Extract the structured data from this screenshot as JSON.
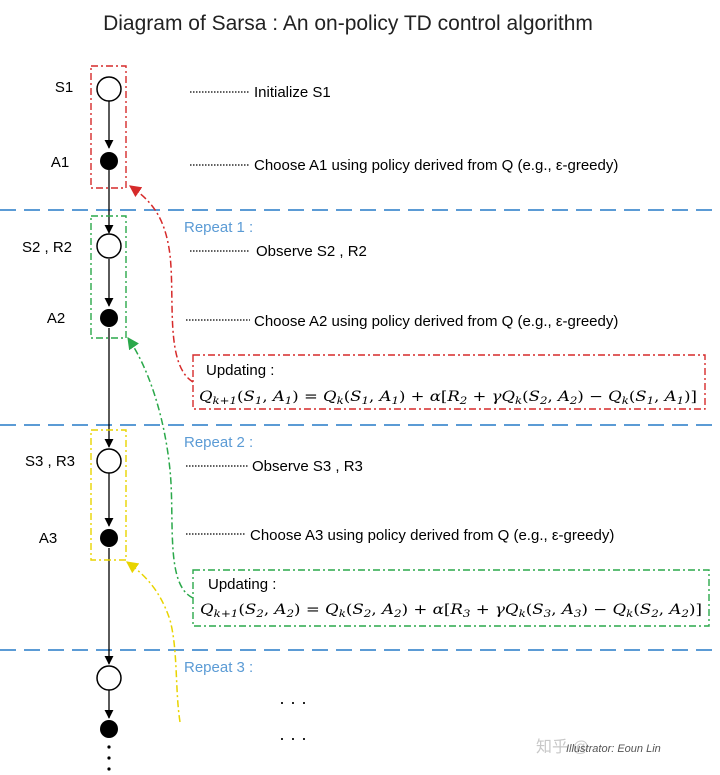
{
  "title": "Diagram of Sarsa : An on-policy TD control algorithm",
  "nodes": {
    "s1": "S1",
    "a1": "A1",
    "s2r2": "S2 , R2",
    "a2": "A2",
    "s3r3": "S3 , R3",
    "a3": "A3"
  },
  "steps": {
    "init_s1": "Initialize S1",
    "choose_a1": "Choose A1 using policy derived from Q (e.g., ε-greedy)",
    "observe_s2": "Observe S2 , R2",
    "choose_a2": "Choose A2 using policy derived from Q (e.g., ε-greedy)",
    "observe_s3": "Observe S3 , R3",
    "choose_a3": "Choose A3 using policy derived from Q (e.g., ε-greedy)"
  },
  "repeats": {
    "r1": "Repeat 1 :",
    "r2": "Repeat 2 :",
    "r3": "Repeat 3 :"
  },
  "updates": {
    "label1": "Updating :",
    "label2": "Updating :"
  },
  "ellipsis": {
    "row1": "·   ·   ·",
    "row2": "·   ·   ·"
  },
  "watermark": {
    "site": "知乎 @",
    "credit": "Illustrator: Eoun Lin"
  },
  "colors": {
    "red": "#d62a2a",
    "green": "#2aa84a",
    "yellow": "#e8d400",
    "blue_divider": "#5b9bd5",
    "repeat_text": "#5b9bd5"
  }
}
